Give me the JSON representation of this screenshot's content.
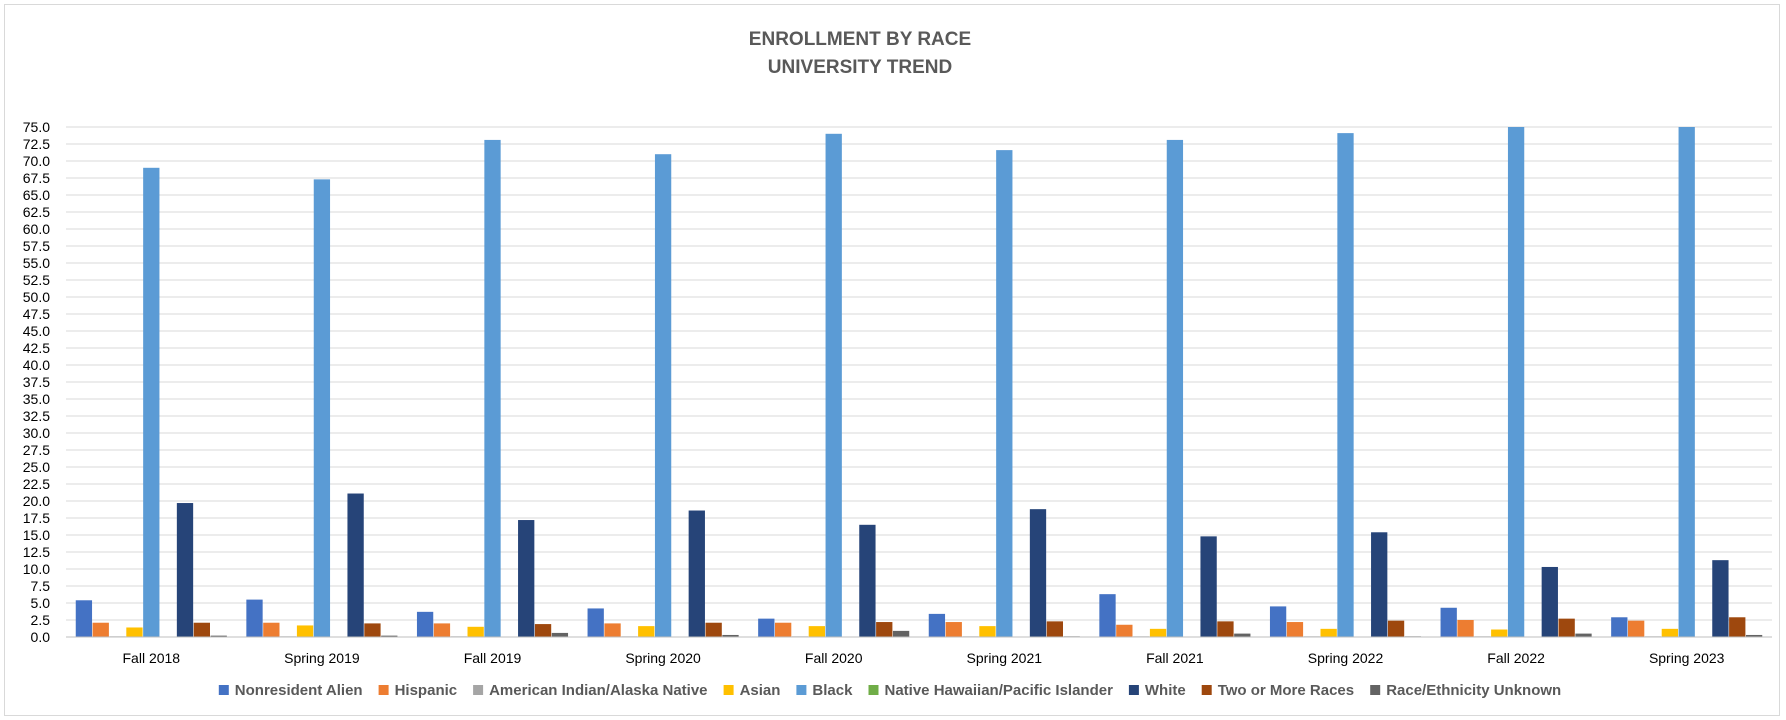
{
  "chart_data": {
    "type": "bar",
    "title": "ENROLLMENT BY RACE",
    "subtitle": "UNIVERSITY TREND",
    "xlabel": "",
    "ylabel": "",
    "ylim": [
      0,
      75
    ],
    "ytick_step": 2.5,
    "yticks": [
      "0.0",
      "2.5",
      "5.0",
      "7.5",
      "10.0",
      "12.5",
      "15.0",
      "17.5",
      "20.0",
      "22.5",
      "25.0",
      "27.5",
      "30.0",
      "32.5",
      "35.0",
      "37.5",
      "40.0",
      "42.5",
      "45.0",
      "47.5",
      "50.0",
      "52.5",
      "55.0",
      "57.5",
      "60.0",
      "62.5",
      "65.0",
      "67.5",
      "70.0",
      "72.5",
      "75.0"
    ],
    "grid": true,
    "legend_position": "bottom",
    "categories": [
      "Fall 2018",
      "Spring 2019",
      "Fall 2019",
      "Spring 2020",
      "Fall 2020",
      "Spring 2021",
      "Fall 2021",
      "Spring 2022",
      "Fall 2022",
      "Spring 2023"
    ],
    "series": [
      {
        "name": "Nonresident Alien",
        "color": "#4472C4",
        "values": [
          5.4,
          5.5,
          3.7,
          4.2,
          2.7,
          3.4,
          6.3,
          4.5,
          4.3,
          2.9
        ]
      },
      {
        "name": "Hispanic",
        "color": "#ED7D31",
        "values": [
          2.1,
          2.1,
          2.0,
          2.0,
          2.1,
          2.2,
          1.8,
          2.2,
          2.5,
          2.4
        ]
      },
      {
        "name": "American Indian/Alaska Native",
        "color": "#A5A5A5",
        "values": [
          0.1,
          0.1,
          0.1,
          0.1,
          0.1,
          0.1,
          0.1,
          0.1,
          0.1,
          0.1
        ]
      },
      {
        "name": "Asian",
        "color": "#FFC000",
        "values": [
          1.4,
          1.7,
          1.5,
          1.6,
          1.6,
          1.6,
          1.2,
          1.2,
          1.1,
          1.2
        ]
      },
      {
        "name": "Black",
        "color": "#5B9BD5",
        "values": [
          69.0,
          67.3,
          73.1,
          71.0,
          74.0,
          71.6,
          73.1,
          74.1,
          75.0,
          75.0
        ]
      },
      {
        "name": "Native Hawaiian/Pacific Islander",
        "color": "#70AD47",
        "values": [
          0.0,
          0.0,
          0.0,
          0.0,
          0.0,
          0.0,
          0.0,
          0.0,
          0.0,
          0.0
        ]
      },
      {
        "name": "White",
        "color": "#264478",
        "values": [
          19.7,
          21.1,
          17.2,
          18.6,
          16.5,
          18.8,
          14.8,
          15.4,
          10.3,
          11.3
        ]
      },
      {
        "name": "Two or More Races",
        "color": "#9E480E",
        "values": [
          2.1,
          2.0,
          1.9,
          2.1,
          2.2,
          2.3,
          2.3,
          2.4,
          2.7,
          2.9
        ]
      },
      {
        "name": "Race/Ethnicity Unknown",
        "color": "#636363",
        "values": [
          0.2,
          0.2,
          0.6,
          0.3,
          0.9,
          0.1,
          0.5,
          0.1,
          0.5,
          0.3
        ]
      }
    ]
  }
}
